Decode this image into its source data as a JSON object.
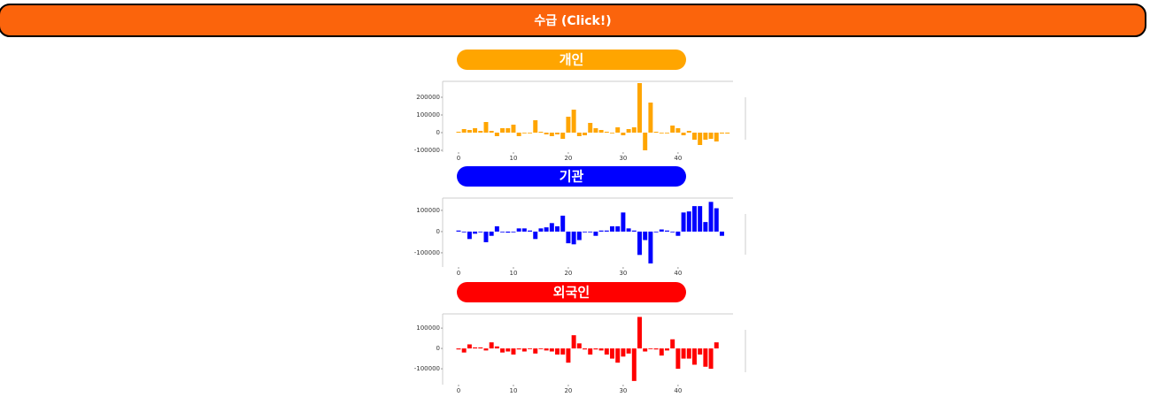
{
  "button": "수급 (Click!)",
  "chart_data": [
    {
      "type": "bar",
      "title": "개인",
      "color": "#ffa500",
      "x": [
        0,
        1,
        2,
        3,
        4,
        5,
        6,
        7,
        8,
        9,
        10,
        11,
        12,
        13,
        14,
        15,
        16,
        17,
        18,
        19,
        20,
        21,
        22,
        23,
        24,
        25,
        26,
        27,
        28,
        29,
        30,
        31,
        32,
        33,
        34,
        35,
        36,
        37,
        38,
        39,
        40,
        41,
        42,
        43,
        44,
        45,
        46,
        47,
        48,
        49
      ],
      "values": [
        5000,
        20000,
        15000,
        25000,
        10000,
        60000,
        10000,
        -20000,
        25000,
        25000,
        45000,
        -20000,
        0,
        0,
        70000,
        5000,
        -10000,
        -20000,
        -10000,
        -35000,
        90000,
        130000,
        -20000,
        -15000,
        55000,
        25000,
        15000,
        5000,
        0,
        30000,
        -15000,
        20000,
        30000,
        280000,
        -100000,
        170000,
        5000,
        0,
        0,
        40000,
        25000,
        -15000,
        10000,
        -40000,
        -70000,
        -40000,
        -35000,
        -50000,
        -5000,
        -5000
      ],
      "xlim": [
        -2.9,
        49.7
      ],
      "xticks": [
        0,
        10,
        20,
        30,
        40
      ],
      "ylim": [
        -110000,
        290000
      ],
      "yticks": [
        -100000,
        0,
        100000,
        200000
      ]
    },
    {
      "type": "bar",
      "title": "기관",
      "color": "#0000ff",
      "x": [
        0,
        1,
        2,
        3,
        4,
        5,
        6,
        7,
        8,
        9,
        10,
        11,
        12,
        13,
        14,
        15,
        16,
        17,
        18,
        19,
        20,
        21,
        22,
        23,
        24,
        25,
        26,
        27,
        28,
        29,
        30,
        31,
        32,
        33,
        34,
        35,
        36,
        37,
        38,
        39,
        40,
        41,
        42,
        43,
        44,
        45,
        46,
        47,
        48
      ],
      "values": [
        5000,
        0,
        -35000,
        -10000,
        0,
        -50000,
        -20000,
        25000,
        0,
        -5000,
        0,
        15000,
        15000,
        5000,
        -35000,
        15000,
        20000,
        40000,
        25000,
        75000,
        -55000,
        -60000,
        -40000,
        0,
        0,
        -20000,
        5000,
        5000,
        25000,
        25000,
        90000,
        15000,
        5000,
        -110000,
        -40000,
        -150000,
        0,
        10000,
        5000,
        0,
        -20000,
        90000,
        95000,
        120000,
        120000,
        45000,
        140000,
        110000,
        -20000
      ],
      "xlim": [
        -2.9,
        49.7
      ],
      "xticks": [
        0,
        10,
        20,
        30,
        40
      ],
      "ylim": [
        -167000,
        158000
      ],
      "yticks": [
        -100000,
        0,
        100000
      ]
    },
    {
      "type": "bar",
      "title": "외국인",
      "color": "#ff0000",
      "x": [
        0,
        1,
        2,
        3,
        4,
        5,
        6,
        7,
        8,
        9,
        10,
        11,
        12,
        13,
        14,
        15,
        16,
        17,
        18,
        19,
        20,
        21,
        22,
        23,
        24,
        25,
        26,
        27,
        28,
        29,
        30,
        31,
        32,
        33,
        34,
        35,
        36,
        37,
        38,
        39,
        40,
        41,
        42,
        43,
        44,
        45,
        46,
        47
      ],
      "values": [
        -5000,
        -20000,
        20000,
        5000,
        5000,
        -10000,
        30000,
        10000,
        -20000,
        -15000,
        -30000,
        -5000,
        -15000,
        0,
        -25000,
        0,
        -10000,
        -15000,
        -30000,
        -30000,
        -70000,
        65000,
        25000,
        -5000,
        -30000,
        -5000,
        -10000,
        -30000,
        -50000,
        -70000,
        -40000,
        -25000,
        -160000,
        155000,
        -15000,
        0,
        -5000,
        -35000,
        -10000,
        45000,
        -100000,
        -50000,
        -50000,
        -80000,
        -30000,
        -90000,
        -100000,
        30000
      ],
      "xlim": [
        -2.9,
        49.7
      ],
      "xticks": [
        0,
        10,
        20,
        30,
        40
      ],
      "ylim": [
        -178000,
        170000
      ],
      "yticks": [
        -100000,
        0,
        100000
      ]
    }
  ]
}
